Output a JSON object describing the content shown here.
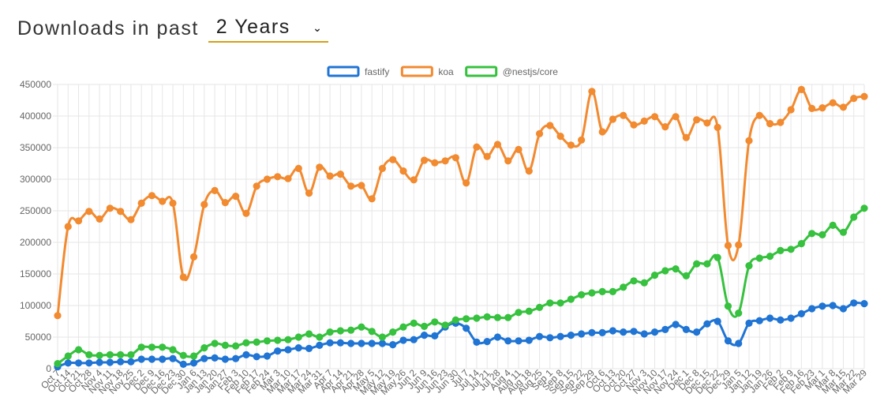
{
  "header": {
    "title_prefix": "Downloads in past",
    "period": "2 Years"
  },
  "colors": {
    "fastify": "#1f74d4",
    "koa": "#f28a30",
    "nestjs_core": "#36c13e",
    "grid": "#e6e6e6",
    "select_underline": "#d4a017"
  },
  "chart_data": {
    "type": "line",
    "title": "",
    "xlabel": "",
    "ylabel": "",
    "ylim": [
      0,
      450000
    ],
    "yticks": [
      0,
      50000,
      100000,
      150000,
      200000,
      250000,
      300000,
      350000,
      400000,
      450000
    ],
    "grid": true,
    "legend_position": "top-center",
    "x": [
      "Oct 7",
      "Oct 14",
      "Oct 21",
      "Oct 28",
      "Nov 4",
      "Nov 11",
      "Nov 18",
      "Nov 25",
      "Dec 2",
      "Dec 9",
      "Dec 16",
      "Dec 23",
      "Dec 30",
      "Jan 6",
      "Jan 13",
      "Jan 20",
      "Jan 27",
      "Feb 3",
      "Feb 10",
      "Feb 17",
      "Feb 24",
      "Mar 3",
      "Mar 10",
      "Mar 17",
      "Mar 24",
      "Mar 31",
      "Apr 7",
      "Apr 14",
      "Apr 21",
      "Apr 28",
      "May 5",
      "May 12",
      "May 19",
      "May 26",
      "Jun 2",
      "Jun 9",
      "Jun 16",
      "Jun 23",
      "Jun 30",
      "Jul 7",
      "Jul 14",
      "Jul 21",
      "Jul 28",
      "Aug 4",
      "Aug 11",
      "Aug 18",
      "Aug 25",
      "Sep 1",
      "Sep 8",
      "Sep 15",
      "Sep 22",
      "Sep 29",
      "Oct 6",
      "Oct 13",
      "Oct 20",
      "Oct 27",
      "Nov 3",
      "Nov 10",
      "Nov 17",
      "Nov 24",
      "Dec 1",
      "Dec 8",
      "Dec 15",
      "Dec 22",
      "Dec 29",
      "Jan 5",
      "Jan 12",
      "Jan 19",
      "Jan 26",
      "Feb 2",
      "Feb 9",
      "Feb 16",
      "Feb 23",
      "Mar 1",
      "Mar 8",
      "Mar 15",
      "Mar 22",
      "Mar 29"
    ],
    "series": [
      {
        "name": "fastify",
        "values": [
          3000,
          9000,
          9000,
          9000,
          10000,
          10000,
          11000,
          11000,
          15000,
          15000,
          15000,
          16000,
          7000,
          9000,
          16000,
          17000,
          15000,
          16000,
          22000,
          19000,
          20000,
          28000,
          30000,
          33000,
          32000,
          37000,
          41000,
          41000,
          40000,
          40000,
          40000,
          40000,
          38000,
          45000,
          46000,
          53000,
          52000,
          66000,
          72000,
          64000,
          42000,
          43000,
          50000,
          44000,
          44000,
          45000,
          51000,
          49000,
          51000,
          53000,
          55000,
          57000,
          57000,
          60000,
          58000,
          59000,
          55000,
          58000,
          62000,
          70000,
          62000,
          58000,
          71000,
          75000,
          44000,
          40000,
          72000,
          76000,
          80000,
          77000,
          80000,
          87000,
          95000,
          99000,
          100000,
          95000,
          104000,
          103000
        ]
      },
      {
        "name": "koa",
        "values": [
          84000,
          225000,
          234000,
          249000,
          237000,
          254000,
          249000,
          236000,
          262000,
          274000,
          265000,
          262000,
          145000,
          177000,
          260000,
          282000,
          263000,
          273000,
          246000,
          289000,
          300000,
          304000,
          301000,
          317000,
          278000,
          319000,
          305000,
          308000,
          289000,
          290000,
          269000,
          317000,
          331000,
          313000,
          299000,
          330000,
          326000,
          329000,
          334000,
          294000,
          351000,
          336000,
          355000,
          329000,
          347000,
          313000,
          372000,
          385000,
          368000,
          354000,
          362000,
          439000,
          375000,
          395000,
          401000,
          386000,
          392000,
          399000,
          383000,
          399000,
          366000,
          394000,
          389000,
          382000,
          195000,
          196000,
          361000,
          401000,
          388000,
          390000,
          410000,
          442000,
          412000,
          413000,
          421000,
          414000,
          428000,
          431000
        ]
      },
      {
        "name": "@nestjs/core",
        "values": [
          8000,
          20000,
          30000,
          22000,
          21000,
          22000,
          22000,
          22000,
          34000,
          34000,
          34000,
          30000,
          21000,
          20000,
          33000,
          40000,
          37000,
          36000,
          41000,
          42000,
          44000,
          45000,
          46000,
          50000,
          55000,
          50000,
          58000,
          60000,
          61000,
          66000,
          59000,
          50000,
          58000,
          66000,
          72000,
          67000,
          74000,
          69000,
          77000,
          79000,
          80000,
          82000,
          81000,
          81000,
          89000,
          91000,
          97000,
          104000,
          104000,
          110000,
          117000,
          120000,
          122000,
          122000,
          129000,
          139000,
          136000,
          148000,
          155000,
          158000,
          147000,
          166000,
          166000,
          176000,
          99000,
          88000,
          163000,
          175000,
          178000,
          187000,
          189000,
          198000,
          214000,
          212000,
          227000,
          216000,
          240000,
          254000
        ]
      }
    ]
  }
}
